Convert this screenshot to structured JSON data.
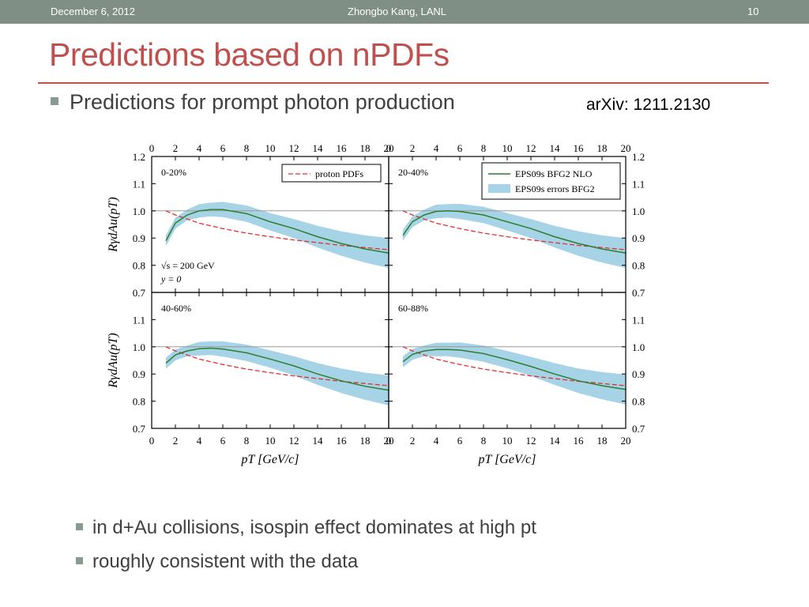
{
  "header": {
    "date": "December 6, 2012",
    "author": "Zhongbo Kang, LANL",
    "page": "10"
  },
  "title": "Predictions based on nPDFs",
  "bullets": {
    "main": "Predictions for prompt photon production",
    "arxiv": "arXiv: 1211.2130",
    "sub": [
      "in d+Au collisions, isospin effect dominates at high pt",
      "roughly consistent with the data"
    ]
  },
  "colors": {
    "accent": "#c0504d",
    "header_bar": "#7f8f86",
    "nlo_line": "#2e7d32",
    "error_band": "#a6d4e6",
    "proton_line": "#e03030"
  },
  "chart_data": {
    "type": "line",
    "panels": [
      "0-20%",
      "20-40%",
      "40-60%",
      "60-88%"
    ],
    "xlabel": "pT [GeV/c]",
    "ylabel": "RγdAu(pT)",
    "xlim": [
      0,
      20
    ],
    "ylim": [
      0.7,
      1.2
    ],
    "xticks": [
      "0",
      "2",
      "4",
      "6",
      "8",
      "10",
      "12",
      "14",
      "16",
      "18",
      "20"
    ],
    "yticks": [
      "0.7",
      "0.8",
      "0.9",
      "1.0",
      "1.1",
      "1.2"
    ],
    "annotations": [
      "√s = 200 GeV",
      "y = 0"
    ],
    "legend": {
      "proton": "proton PDFs",
      "nlo": "EPS09s BFG2 NLO",
      "band": "EPS09s errors BFG2"
    },
    "series": [
      {
        "name": "proton PDFs",
        "x": [
          1.2,
          2,
          4,
          6,
          8,
          10,
          12,
          14,
          16,
          18,
          20
        ],
        "values": [
          [
            1.0,
            0.985,
            0.955,
            0.935,
            0.918,
            0.905,
            0.893,
            0.883,
            0.873,
            0.865,
            0.857
          ],
          [
            1.0,
            0.985,
            0.955,
            0.935,
            0.918,
            0.905,
            0.893,
            0.883,
            0.873,
            0.865,
            0.857
          ],
          [
            1.0,
            0.985,
            0.955,
            0.935,
            0.918,
            0.905,
            0.893,
            0.883,
            0.873,
            0.865,
            0.857
          ],
          [
            1.0,
            0.985,
            0.955,
            0.935,
            0.918,
            0.905,
            0.893,
            0.883,
            0.873,
            0.865,
            0.857
          ]
        ]
      },
      {
        "name": "EPS09s BFG2 NLO",
        "x": [
          1.2,
          2,
          3,
          4,
          5,
          6,
          8,
          10,
          12,
          14,
          16,
          18,
          20
        ],
        "values": [
          [
            0.89,
            0.955,
            0.985,
            1.0,
            1.005,
            1.005,
            0.99,
            0.96,
            0.935,
            0.905,
            0.88,
            0.86,
            0.845
          ],
          [
            0.91,
            0.96,
            0.985,
            0.998,
            1.0,
            0.998,
            0.985,
            0.96,
            0.935,
            0.905,
            0.88,
            0.86,
            0.845
          ],
          [
            0.94,
            0.97,
            0.985,
            0.993,
            0.995,
            0.992,
            0.978,
            0.955,
            0.93,
            0.9,
            0.875,
            0.855,
            0.84
          ],
          [
            0.945,
            0.972,
            0.985,
            0.99,
            0.99,
            0.988,
            0.975,
            0.953,
            0.928,
            0.9,
            0.875,
            0.857,
            0.843
          ]
        ]
      },
      {
        "name": "EPS09s errors BFG2",
        "halfwidth": [
          0.02,
          0.02,
          0.02,
          0.025,
          0.025,
          0.028,
          0.03,
          0.032,
          0.035,
          0.04,
          0.045,
          0.05,
          0.055
        ]
      }
    ]
  }
}
